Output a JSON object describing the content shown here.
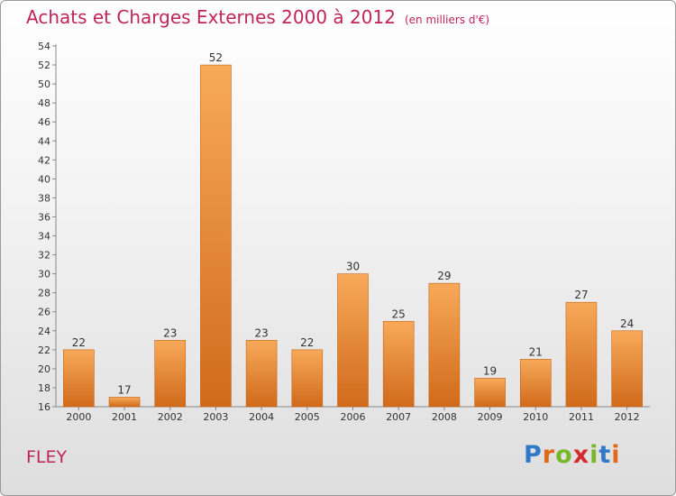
{
  "header": {
    "title": "Achats et Charges Externes 2000 à 2012",
    "unit": "(en milliers d'€)"
  },
  "footer": {
    "commune": "FLEY",
    "logo_letters": [
      "P",
      "r",
      "o",
      "x",
      "i",
      "t",
      "i"
    ],
    "logo_colors": [
      "#2f79c6",
      "#e06a1a",
      "#79b72a",
      "#d52b2b",
      "#79b72a",
      "#2f79c6",
      "#e06a1a"
    ]
  },
  "colors": {
    "bar_light": "#f7aa5a",
    "bar_dark": "#d06a1a",
    "accent": "#c0245a"
  },
  "chart_data": {
    "type": "bar",
    "title": "Achats et Charges Externes 2000 à 2012",
    "subtitle": "(en milliers d'€)",
    "categories": [
      "2000",
      "2001",
      "2002",
      "2003",
      "2004",
      "2005",
      "2006",
      "2007",
      "2008",
      "2009",
      "2010",
      "2011",
      "2012"
    ],
    "values": [
      22,
      17,
      23,
      52,
      23,
      22,
      30,
      25,
      29,
      19,
      21,
      27,
      24
    ],
    "ylim": [
      16,
      54
    ],
    "yticks": [
      16,
      18,
      20,
      22,
      24,
      26,
      28,
      30,
      32,
      34,
      36,
      38,
      40,
      42,
      44,
      46,
      48,
      50,
      52,
      54
    ],
    "grid": false,
    "xlabel": "",
    "ylabel": ""
  }
}
